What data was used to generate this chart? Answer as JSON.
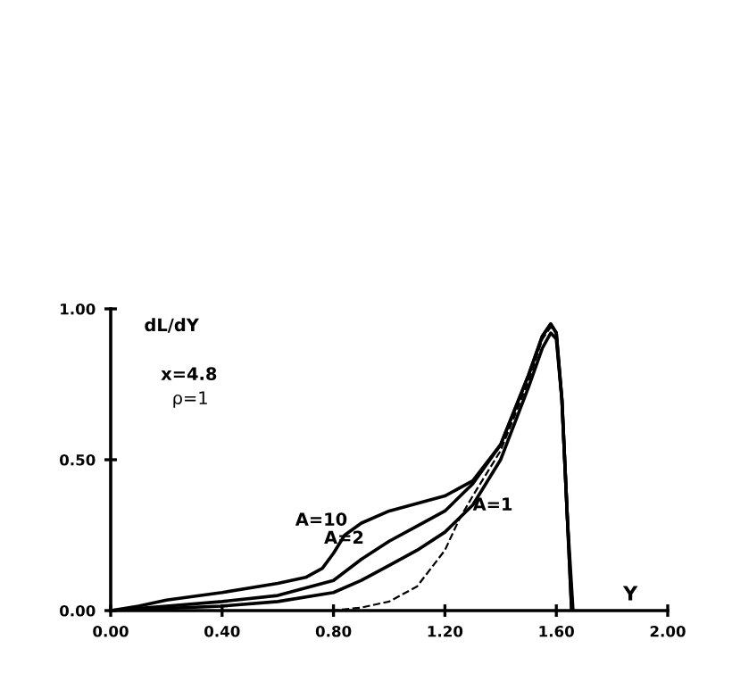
{
  "chart_data": {
    "type": "line",
    "xlabel": "Y",
    "ylabel": "dL/dY",
    "xlim": [
      0,
      2
    ],
    "ylim": [
      0,
      1
    ],
    "xticks": [
      {
        "value": 0,
        "label": "0.00"
      },
      {
        "value": 0.4,
        "label": "0.40"
      },
      {
        "value": 0.8,
        "label": "0.80"
      },
      {
        "value": 1.2,
        "label": "1.20"
      },
      {
        "value": 1.6,
        "label": "1.60"
      },
      {
        "value": 2,
        "label": "2.00"
      }
    ],
    "yticks": [
      {
        "value": 0,
        "label": "0.00"
      },
      {
        "value": 0.5,
        "label": "0.50"
      },
      {
        "value": 1,
        "label": "1.00"
      }
    ],
    "grid": false,
    "legend": false,
    "marker": "none",
    "series": [
      {
        "color": "#000000",
        "line_style": "solid",
        "x": [
          0,
          0.1,
          0.2,
          0.4,
          0.6,
          0.7,
          0.76,
          0.8,
          0.84,
          0.9,
          1.0,
          1.1,
          1.2,
          1.3,
          1.4,
          1.5,
          1.55,
          1.58,
          1.6,
          1.62,
          1.64,
          1.655
        ],
        "values": [
          0,
          0.015,
          0.035,
          0.06,
          0.09,
          0.11,
          0.14,
          0.19,
          0.25,
          0.29,
          0.33,
          0.355,
          0.38,
          0.43,
          0.55,
          0.78,
          0.91,
          0.95,
          0.92,
          0.7,
          0.3,
          0
        ]
      },
      {
        "color": "#000000",
        "line_style": "solid",
        "x": [
          0,
          0.2,
          0.4,
          0.6,
          0.8,
          0.9,
          1.0,
          1.1,
          1.2,
          1.3,
          1.4,
          1.5,
          1.55,
          1.58,
          1.6,
          1.62,
          1.64,
          1.655
        ],
        "values": [
          0,
          0.015,
          0.03,
          0.05,
          0.1,
          0.17,
          0.23,
          0.28,
          0.33,
          0.42,
          0.55,
          0.78,
          0.91,
          0.95,
          0.92,
          0.7,
          0.3,
          0
        ]
      },
      {
        "color": "#000000",
        "line_style": "solid",
        "x": [
          0,
          0.4,
          0.6,
          0.8,
          0.9,
          1.0,
          1.1,
          1.2,
          1.3,
          1.4,
          1.5,
          1.55,
          1.58,
          1.6,
          1.62,
          1.64,
          1.66
        ],
        "values": [
          0,
          0.015,
          0.03,
          0.06,
          0.1,
          0.15,
          0.2,
          0.26,
          0.35,
          0.5,
          0.74,
          0.87,
          0.92,
          0.9,
          0.7,
          0.3,
          0
        ]
      },
      {
        "color": "#000000",
        "line_style": "dashed",
        "x": [
          0,
          0.8,
          0.9,
          1.0,
          1.1,
          1.2,
          1.25,
          1.3,
          1.4,
          1.5,
          1.55,
          1.58,
          1.6,
          1.62,
          1.64,
          1.66
        ],
        "values": [
          0,
          0,
          0.01,
          0.03,
          0.08,
          0.2,
          0.3,
          0.38,
          0.53,
          0.76,
          0.9,
          0.94,
          0.92,
          0.7,
          0.3,
          0
        ]
      }
    ],
    "annotations": [
      "x=4.8",
      "ρ=1",
      {
        "text": "A=10",
        "x": 0.85,
        "y": 0.27
      },
      {
        "text": "A=2",
        "x": 0.91,
        "y": 0.21
      },
      {
        "text": "A=1",
        "x": 1.3,
        "y": 0.32
      }
    ]
  }
}
